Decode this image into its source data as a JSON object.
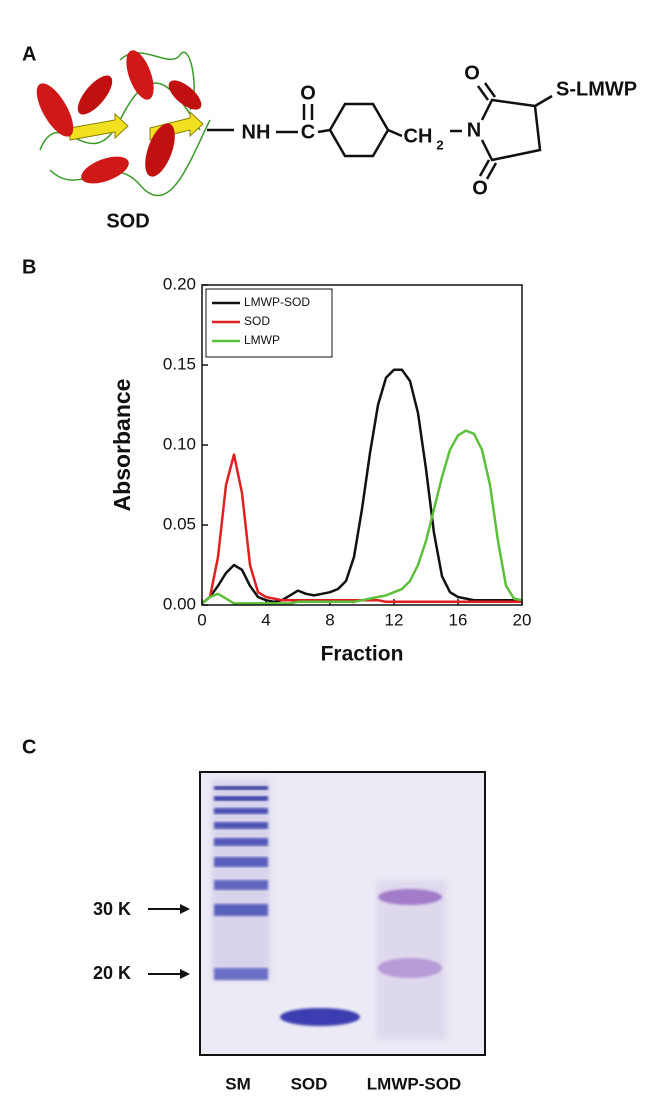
{
  "panel_a": {
    "label": "A",
    "protein_label": "SOD",
    "amide": "NH",
    "carbonyl_c": "C",
    "carbonyl_o": "O",
    "methylene": "CH",
    "methylene_sub": "2",
    "imide_n": "N",
    "imide_o_top": "O",
    "imide_o_bottom": "O",
    "thioether": "S-LMWP"
  },
  "panel_b": {
    "label": "B"
  },
  "chart_data": {
    "type": "line",
    "xlabel": "Fraction",
    "ylabel": "Absorbance",
    "xlim": [
      0,
      20
    ],
    "ylim": [
      0,
      0.2
    ],
    "xticks": [
      0,
      4,
      8,
      12,
      16,
      20
    ],
    "yticks": [
      {
        "value": 0,
        "label": "0.00"
      },
      {
        "value": 0.05,
        "label": "0.05"
      },
      {
        "value": 0.1,
        "label": "0.10"
      },
      {
        "value": 0.15,
        "label": "0.15"
      },
      {
        "value": 0.2,
        "label": "0.20"
      }
    ],
    "legend": "upper left",
    "x": [
      0,
      0.5,
      1,
      1.5,
      2,
      2.5,
      3,
      3.5,
      4,
      4.5,
      5,
      5.5,
      6,
      6.5,
      7,
      7.5,
      8,
      8.5,
      9,
      9.5,
      10,
      10.5,
      11,
      11.5,
      12,
      12.5,
      13,
      13.5,
      14,
      14.5,
      15,
      15.5,
      16,
      16.5,
      17,
      17.5,
      18,
      18.5,
      19,
      19.5,
      20
    ],
    "series": [
      {
        "name": "LMWP-SOD",
        "color": "#111111",
        "values": [
          0.001,
          0.005,
          0.012,
          0.02,
          0.025,
          0.022,
          0.012,
          0.005,
          0.003,
          0.002,
          0.003,
          0.006,
          0.009,
          0.007,
          0.006,
          0.007,
          0.008,
          0.01,
          0.015,
          0.03,
          0.06,
          0.095,
          0.125,
          0.142,
          0.147,
          0.147,
          0.14,
          0.12,
          0.085,
          0.045,
          0.018,
          0.008,
          0.005,
          0.004,
          0.003,
          0.003,
          0.003,
          0.003,
          0.003,
          0.003,
          0.003
        ]
      },
      {
        "name": "SOD",
        "color": "#e02020",
        "values": [
          0.001,
          0.005,
          0.03,
          0.075,
          0.094,
          0.07,
          0.025,
          0.008,
          0.005,
          0.004,
          0.003,
          0.003,
          0.003,
          0.003,
          0.003,
          0.003,
          0.003,
          0.003,
          0.003,
          0.003,
          0.003,
          0.003,
          0.003,
          0.002,
          0.002,
          0.002,
          0.002,
          0.002,
          0.002,
          0.002,
          0.002,
          0.002,
          0.002,
          0.002,
          0.002,
          0.002,
          0.002,
          0.002,
          0.002,
          0.002,
          0.002
        ]
      },
      {
        "name": "LMWP",
        "color": "#5cbf3a",
        "values": [
          0.001,
          0.005,
          0.007,
          0.004,
          0.001,
          0.001,
          0.001,
          0.001,
          0.001,
          0.001,
          0.001,
          0.001,
          0.002,
          0.002,
          0.002,
          0.002,
          0.002,
          0.002,
          0.002,
          0.002,
          0.003,
          0.004,
          0.005,
          0.006,
          0.008,
          0.01,
          0.015,
          0.025,
          0.04,
          0.06,
          0.08,
          0.097,
          0.106,
          0.109,
          0.107,
          0.097,
          0.075,
          0.04,
          0.012,
          0.004,
          0.003
        ]
      }
    ]
  },
  "panel_c": {
    "label": "C",
    "markers": [
      "30 K",
      "20 K"
    ],
    "lanes": [
      "SM",
      "SOD",
      "LMWP-SOD"
    ]
  }
}
